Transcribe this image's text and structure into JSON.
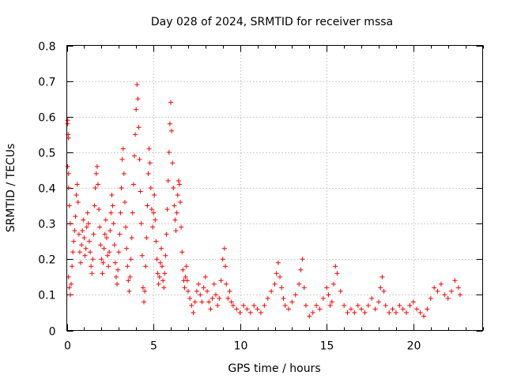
{
  "chart_data": {
    "type": "scatter",
    "title": "Day 028 of 2024, SRMTID for receiver mssa",
    "xlabel": "GPS time / hours",
    "ylabel": "SRMTID / TECUs",
    "xlim": [
      0,
      24
    ],
    "ylim": [
      0,
      0.8
    ],
    "xticks": [
      0,
      5,
      10,
      15,
      20
    ],
    "xtick_labels": [
      "0",
      "5",
      "10",
      "15",
      "20"
    ],
    "yticks": [
      0,
      0.1,
      0.2,
      0.3,
      0.4,
      0.5,
      0.6,
      0.7,
      0.8
    ],
    "ytick_labels": [
      "0",
      "0.1",
      "0.2",
      "0.3",
      "0.4",
      "0.5",
      "0.6",
      "0.7",
      "0.8"
    ],
    "grid": true,
    "marker": "+",
    "color": "#ff0000",
    "series": [
      {
        "name": "SRMTID mssa",
        "points": [
          [
            0.05,
            0.59
          ],
          [
            0.05,
            0.58
          ],
          [
            0.08,
            0.55
          ],
          [
            0.1,
            0.54
          ],
          [
            0.05,
            0.46
          ],
          [
            0.1,
            0.44
          ],
          [
            0.1,
            0.4
          ],
          [
            0.15,
            0.35
          ],
          [
            0.2,
            0.3
          ],
          [
            0.1,
            0.15
          ],
          [
            0.15,
            0.12
          ],
          [
            0.2,
            0.1
          ],
          [
            0.25,
            0.13
          ],
          [
            0.3,
            0.18
          ],
          [
            0.35,
            0.22
          ],
          [
            0.4,
            0.25
          ],
          [
            0.45,
            0.28
          ],
          [
            0.5,
            0.32
          ],
          [
            0.55,
            0.38
          ],
          [
            0.6,
            0.41
          ],
          [
            0.65,
            0.36
          ],
          [
            0.7,
            0.27
          ],
          [
            0.75,
            0.22
          ],
          [
            0.8,
            0.19
          ],
          [
            0.85,
            0.24
          ],
          [
            0.9,
            0.28
          ],
          [
            0.95,
            0.31
          ],
          [
            1.0,
            0.26
          ],
          [
            1.05,
            0.21
          ],
          [
            1.1,
            0.23
          ],
          [
            1.15,
            0.29
          ],
          [
            1.2,
            0.33
          ],
          [
            1.25,
            0.3
          ],
          [
            1.3,
            0.25
          ],
          [
            1.35,
            0.22
          ],
          [
            1.4,
            0.18
          ],
          [
            1.45,
            0.16
          ],
          [
            1.5,
            0.2
          ],
          [
            1.55,
            0.27
          ],
          [
            1.6,
            0.35
          ],
          [
            1.65,
            0.4
          ],
          [
            1.7,
            0.44
          ],
          [
            1.75,
            0.46
          ],
          [
            1.8,
            0.41
          ],
          [
            1.85,
            0.34
          ],
          [
            1.9,
            0.29
          ],
          [
            1.95,
            0.24
          ],
          [
            2.0,
            0.2
          ],
          [
            2.05,
            0.16
          ],
          [
            2.1,
            0.19
          ],
          [
            2.15,
            0.23
          ],
          [
            2.2,
            0.27
          ],
          [
            2.25,
            0.31
          ],
          [
            2.3,
            0.26
          ],
          [
            2.35,
            0.21
          ],
          [
            2.4,
            0.18
          ],
          [
            2.45,
            0.22
          ],
          [
            2.5,
            0.28
          ],
          [
            2.55,
            0.33
          ],
          [
            2.6,
            0.38
          ],
          [
            2.65,
            0.35
          ],
          [
            2.7,
            0.3
          ],
          [
            2.75,
            0.24
          ],
          [
            2.8,
            0.19
          ],
          [
            2.85,
            0.15
          ],
          [
            2.9,
            0.13
          ],
          [
            2.95,
            0.17
          ],
          [
            3.0,
            0.22
          ],
          [
            3.05,
            0.27
          ],
          [
            3.1,
            0.33
          ],
          [
            3.15,
            0.4
          ],
          [
            3.2,
            0.48
          ],
          [
            3.25,
            0.51
          ],
          [
            3.3,
            0.44
          ],
          [
            3.35,
            0.36
          ],
          [
            3.4,
            0.29
          ],
          [
            3.45,
            0.23
          ],
          [
            3.5,
            0.18
          ],
          [
            3.55,
            0.14
          ],
          [
            3.6,
            0.11
          ],
          [
            3.65,
            0.15
          ],
          [
            3.7,
            0.2
          ],
          [
            3.75,
            0.26
          ],
          [
            3.8,
            0.33
          ],
          [
            3.85,
            0.41
          ],
          [
            3.9,
            0.49
          ],
          [
            3.95,
            0.55
          ],
          [
            4.0,
            0.62
          ],
          [
            4.05,
            0.69
          ],
          [
            4.1,
            0.65
          ],
          [
            4.15,
            0.57
          ],
          [
            4.2,
            0.48
          ],
          [
            4.25,
            0.39
          ],
          [
            4.3,
            0.3
          ],
          [
            4.35,
            0.21
          ],
          [
            4.4,
            0.12
          ],
          [
            4.45,
            0.08
          ],
          [
            4.5,
            0.11
          ],
          [
            4.55,
            0.18
          ],
          [
            4.6,
            0.26
          ],
          [
            4.65,
            0.35
          ],
          [
            4.7,
            0.44
          ],
          [
            4.75,
            0.51
          ],
          [
            4.8,
            0.47
          ],
          [
            4.85,
            0.4
          ],
          [
            4.9,
            0.34
          ],
          [
            4.95,
            0.29
          ],
          [
            5.0,
            0.33
          ],
          [
            5.05,
            0.38
          ],
          [
            5.1,
            0.31
          ],
          [
            5.15,
            0.25
          ],
          [
            5.2,
            0.2
          ],
          [
            5.25,
            0.16
          ],
          [
            5.3,
            0.13
          ],
          [
            5.35,
            0.15
          ],
          [
            5.4,
            0.19
          ],
          [
            5.45,
            0.23
          ],
          [
            5.5,
            0.18
          ],
          [
            5.55,
            0.14
          ],
          [
            5.6,
            0.12
          ],
          [
            5.65,
            0.16
          ],
          [
            5.7,
            0.21
          ],
          [
            5.75,
            0.27
          ],
          [
            5.8,
            0.34
          ],
          [
            5.85,
            0.42
          ],
          [
            5.9,
            0.5
          ],
          [
            5.95,
            0.58
          ],
          [
            6.0,
            0.64
          ],
          [
            6.05,
            0.56
          ],
          [
            6.1,
            0.47
          ],
          [
            6.15,
            0.4
          ],
          [
            6.2,
            0.35
          ],
          [
            6.25,
            0.31
          ],
          [
            6.3,
            0.28
          ],
          [
            6.35,
            0.33
          ],
          [
            6.4,
            0.38
          ],
          [
            6.45,
            0.42
          ],
          [
            6.5,
            0.41
          ],
          [
            6.55,
            0.36
          ],
          [
            6.6,
            0.29
          ],
          [
            6.65,
            0.22
          ],
          [
            6.7,
            0.17
          ],
          [
            6.75,
            0.14
          ],
          [
            6.8,
            0.12
          ],
          [
            6.85,
            0.15
          ],
          [
            6.9,
            0.18
          ],
          [
            6.95,
            0.14
          ],
          [
            7.0,
            0.11
          ],
          [
            7.1,
            0.09
          ],
          [
            7.2,
            0.07
          ],
          [
            7.3,
            0.05
          ],
          [
            7.4,
            0.08
          ],
          [
            7.5,
            0.11
          ],
          [
            7.6,
            0.13
          ],
          [
            7.7,
            0.1
          ],
          [
            7.8,
            0.08
          ],
          [
            7.9,
            0.12
          ],
          [
            8.0,
            0.15
          ],
          [
            8.1,
            0.11
          ],
          [
            8.2,
            0.08
          ],
          [
            8.3,
            0.06
          ],
          [
            8.4,
            0.09
          ],
          [
            8.5,
            0.13
          ],
          [
            8.6,
            0.1
          ],
          [
            8.7,
            0.07
          ],
          [
            8.8,
            0.09
          ],
          [
            8.9,
            0.14
          ],
          [
            9.0,
            0.2
          ],
          [
            9.1,
            0.23
          ],
          [
            9.15,
            0.18
          ],
          [
            9.2,
            0.13
          ],
          [
            9.3,
            0.09
          ],
          [
            9.4,
            0.11
          ],
          [
            9.5,
            0.08
          ],
          [
            9.6,
            0.07
          ],
          [
            9.8,
            0.06
          ],
          [
            10.0,
            0.05
          ],
          [
            10.2,
            0.07
          ],
          [
            10.4,
            0.06
          ],
          [
            10.6,
            0.05
          ],
          [
            10.8,
            0.07
          ],
          [
            11.0,
            0.06
          ],
          [
            11.2,
            0.05
          ],
          [
            11.4,
            0.07
          ],
          [
            11.6,
            0.09
          ],
          [
            11.8,
            0.11
          ],
          [
            12.0,
            0.13
          ],
          [
            12.1,
            0.16
          ],
          [
            12.2,
            0.19
          ],
          [
            12.3,
            0.15
          ],
          [
            12.4,
            0.12
          ],
          [
            12.5,
            0.09
          ],
          [
            12.6,
            0.07
          ],
          [
            12.8,
            0.06
          ],
          [
            13.0,
            0.08
          ],
          [
            13.2,
            0.1
          ],
          [
            13.4,
            0.13
          ],
          [
            13.5,
            0.17
          ],
          [
            13.6,
            0.2
          ],
          [
            13.7,
            0.12
          ],
          [
            13.8,
            0.07
          ],
          [
            14.0,
            0.04
          ],
          [
            14.2,
            0.05
          ],
          [
            14.4,
            0.07
          ],
          [
            14.6,
            0.06
          ],
          [
            14.8,
            0.09
          ],
          [
            15.0,
            0.12
          ],
          [
            15.1,
            0.1
          ],
          [
            15.2,
            0.07
          ],
          [
            15.3,
            0.08
          ],
          [
            15.4,
            0.13
          ],
          [
            15.5,
            0.18
          ],
          [
            15.6,
            0.16
          ],
          [
            15.8,
            0.11
          ],
          [
            16.0,
            0.07
          ],
          [
            16.2,
            0.05
          ],
          [
            16.4,
            0.06
          ],
          [
            16.6,
            0.05
          ],
          [
            16.8,
            0.07
          ],
          [
            17.0,
            0.06
          ],
          [
            17.2,
            0.05
          ],
          [
            17.4,
            0.07
          ],
          [
            17.6,
            0.09
          ],
          [
            17.8,
            0.06
          ],
          [
            18.0,
            0.08
          ],
          [
            18.1,
            0.12
          ],
          [
            18.2,
            0.15
          ],
          [
            18.3,
            0.11
          ],
          [
            18.4,
            0.07
          ],
          [
            18.6,
            0.05
          ],
          [
            18.8,
            0.06
          ],
          [
            19.0,
            0.05
          ],
          [
            19.2,
            0.07
          ],
          [
            19.4,
            0.06
          ],
          [
            19.6,
            0.05
          ],
          [
            19.8,
            0.07
          ],
          [
            20.0,
            0.08
          ],
          [
            20.2,
            0.06
          ],
          [
            20.4,
            0.05
          ],
          [
            20.6,
            0.04
          ],
          [
            20.8,
            0.06
          ],
          [
            21.0,
            0.09
          ],
          [
            21.2,
            0.12
          ],
          [
            21.4,
            0.11
          ],
          [
            21.6,
            0.13
          ],
          [
            21.8,
            0.1
          ],
          [
            22.0,
            0.09
          ],
          [
            22.2,
            0.11
          ],
          [
            22.4,
            0.14
          ],
          [
            22.6,
            0.12
          ],
          [
            22.7,
            0.1
          ]
        ]
      }
    ]
  }
}
